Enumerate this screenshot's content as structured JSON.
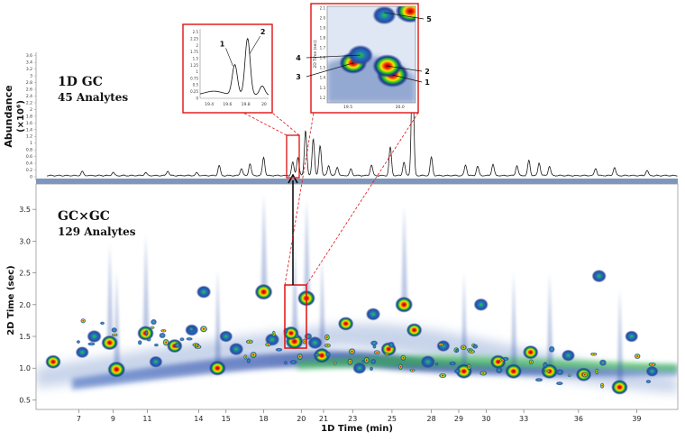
{
  "chart_data": [
    {
      "type": "line",
      "panel": "1D GC",
      "title": "1D GC",
      "subtitle": "45 Analytes",
      "ylabel": "Abundance",
      "yunit": "(×10⁶)",
      "yticks": [
        "0",
        "0.2",
        "0.4",
        "0.6",
        "0.8",
        "1",
        "1.2",
        "1.4",
        "1.6",
        "1.8",
        "2",
        "2.2",
        "2.4",
        "2.6",
        "2.8",
        "3",
        "3.2",
        "3.4",
        "3.6"
      ],
      "xlim": [
        4.5,
        42
      ],
      "ylim": [
        0,
        3.7
      ],
      "peaks": [
        {
          "x": 7.2,
          "y": 0.12
        },
        {
          "x": 9.0,
          "y": 0.1
        },
        {
          "x": 10.9,
          "y": 0.09
        },
        {
          "x": 12.2,
          "y": 0.14
        },
        {
          "x": 13.9,
          "y": 0.08
        },
        {
          "x": 15.2,
          "y": 0.3
        },
        {
          "x": 16.5,
          "y": 0.22
        },
        {
          "x": 17.0,
          "y": 0.36
        },
        {
          "x": 17.8,
          "y": 0.55
        },
        {
          "x": 19.5,
          "y": 0.4
        },
        {
          "x": 19.8,
          "y": 0.55
        },
        {
          "x": 20.25,
          "y": 1.35
        },
        {
          "x": 20.7,
          "y": 1.1
        },
        {
          "x": 21.1,
          "y": 0.9
        },
        {
          "x": 21.6,
          "y": 0.3
        },
        {
          "x": 22.1,
          "y": 0.26
        },
        {
          "x": 22.9,
          "y": 0.2
        },
        {
          "x": 24.1,
          "y": 0.32
        },
        {
          "x": 25.2,
          "y": 0.85
        },
        {
          "x": 26.0,
          "y": 0.4
        },
        {
          "x": 26.5,
          "y": 3.35
        },
        {
          "x": 27.6,
          "y": 0.55
        },
        {
          "x": 29.6,
          "y": 0.32
        },
        {
          "x": 30.3,
          "y": 0.28
        },
        {
          "x": 31.2,
          "y": 0.34
        },
        {
          "x": 32.6,
          "y": 0.3
        },
        {
          "x": 33.3,
          "y": 0.45
        },
        {
          "x": 33.9,
          "y": 0.38
        },
        {
          "x": 34.5,
          "y": 0.28
        },
        {
          "x": 37.2,
          "y": 0.22
        },
        {
          "x": 38.3,
          "y": 0.24
        },
        {
          "x": 40.2,
          "y": 0.16
        }
      ]
    },
    {
      "type": "heatmap",
      "panel": "GC×GC",
      "title": "GC×GC",
      "subtitle": "129 Analytes",
      "xlabel": "1D Time (min)",
      "ylabel": "2D Time (sec)",
      "xlim": [
        4.5,
        42
      ],
      "ylim": [
        0.35,
        3.9
      ],
      "xticks": [
        "7",
        "9",
        "11",
        "14",
        "15",
        "18",
        "20",
        "21",
        "23",
        "25",
        "28",
        "29",
        "30",
        "33",
        "36",
        "39"
      ],
      "yticks": [
        "0.5",
        "1.0",
        "1.5",
        "2.0",
        "2.5",
        "3.0",
        "3.5"
      ],
      "spots": [
        {
          "x": 5.5,
          "y": 1.1,
          "v": 0.8
        },
        {
          "x": 7.2,
          "y": 1.25,
          "v": 0.6
        },
        {
          "x": 7.9,
          "y": 1.5,
          "v": 0.7
        },
        {
          "x": 8.8,
          "y": 1.4,
          "v": 0.9
        },
        {
          "x": 9.2,
          "y": 0.98,
          "v": 1.0
        },
        {
          "x": 10.9,
          "y": 1.55,
          "v": 0.9
        },
        {
          "x": 11.5,
          "y": 1.1,
          "v": 0.6
        },
        {
          "x": 12.6,
          "y": 1.35,
          "v": 0.8
        },
        {
          "x": 13.6,
          "y": 1.6,
          "v": 0.6
        },
        {
          "x": 14.3,
          "y": 2.2,
          "v": 0.7
        },
        {
          "x": 15.1,
          "y": 1.0,
          "v": 0.9
        },
        {
          "x": 15.6,
          "y": 1.5,
          "v": 0.6
        },
        {
          "x": 16.2,
          "y": 1.3,
          "v": 0.7
        },
        {
          "x": 17.8,
          "y": 2.2,
          "v": 1.0
        },
        {
          "x": 18.3,
          "y": 1.45,
          "v": 0.7
        },
        {
          "x": 19.6,
          "y": 1.42,
          "v": 1.0
        },
        {
          "x": 19.4,
          "y": 1.55,
          "v": 0.8
        },
        {
          "x": 20.3,
          "y": 2.1,
          "v": 1.0
        },
        {
          "x": 20.8,
          "y": 1.4,
          "v": 0.7
        },
        {
          "x": 21.2,
          "y": 1.2,
          "v": 0.9
        },
        {
          "x": 22.6,
          "y": 1.7,
          "v": 0.8
        },
        {
          "x": 23.4,
          "y": 1.0,
          "v": 0.6
        },
        {
          "x": 24.2,
          "y": 1.85,
          "v": 0.7
        },
        {
          "x": 25.1,
          "y": 1.3,
          "v": 0.8
        },
        {
          "x": 26.0,
          "y": 2.0,
          "v": 1.0
        },
        {
          "x": 26.6,
          "y": 1.6,
          "v": 0.8
        },
        {
          "x": 27.4,
          "y": 1.1,
          "v": 0.7
        },
        {
          "x": 28.3,
          "y": 1.35,
          "v": 0.6
        },
        {
          "x": 29.5,
          "y": 0.95,
          "v": 0.9
        },
        {
          "x": 30.5,
          "y": 2.0,
          "v": 0.7
        },
        {
          "x": 31.5,
          "y": 1.1,
          "v": 0.8
        },
        {
          "x": 32.4,
          "y": 0.95,
          "v": 0.9
        },
        {
          "x": 33.4,
          "y": 1.25,
          "v": 0.8
        },
        {
          "x": 34.5,
          "y": 0.95,
          "v": 0.9
        },
        {
          "x": 35.6,
          "y": 1.2,
          "v": 0.6
        },
        {
          "x": 36.5,
          "y": 0.9,
          "v": 0.8
        },
        {
          "x": 37.4,
          "y": 2.45,
          "v": 0.7
        },
        {
          "x": 38.6,
          "y": 0.7,
          "v": 0.9
        },
        {
          "x": 39.3,
          "y": 1.5,
          "v": 0.6
        },
        {
          "x": 40.5,
          "y": 0.95,
          "v": 0.5
        }
      ]
    },
    {
      "type": "line",
      "panel": "1D zoom inset",
      "xticks": [
        "19.4",
        "19.6",
        "19.8",
        "20"
      ],
      "yticks": [
        "0",
        "0.25",
        "0.5",
        "0.75",
        "1",
        "1.25",
        "1.5",
        "1.75",
        "2",
        "2.25",
        "2.5"
      ],
      "xlim": [
        19.3,
        20.05
      ],
      "ylim": [
        0,
        2.6
      ],
      "peak_labels": [
        "1",
        "2"
      ],
      "peaks": [
        {
          "x": 19.68,
          "y": 1.15
        },
        {
          "x": 19.82,
          "y": 2.15
        },
        {
          "x": 19.98,
          "y": 0.35
        }
      ]
    },
    {
      "type": "heatmap",
      "panel": "GC×GC zoom inset",
      "ylabel": "2D Time (sec)",
      "xticks": [
        "19.5",
        "20.0"
      ],
      "yticks": [
        "1.2",
        "1.3",
        "1.4",
        "1.5",
        "1.6",
        "1.7",
        "1.8",
        "1.9",
        "2.0",
        "2.1"
      ],
      "xlim": [
        19.3,
        20.15
      ],
      "ylim": [
        1.15,
        2.12
      ],
      "spot_labels": [
        "1",
        "2",
        "3",
        "4",
        "5"
      ],
      "spots": [
        {
          "x": 19.93,
          "y": 1.43,
          "v": 1.0
        },
        {
          "x": 19.88,
          "y": 1.52,
          "v": 0.9
        },
        {
          "x": 19.55,
          "y": 1.55,
          "v": 0.8
        },
        {
          "x": 19.62,
          "y": 1.63,
          "v": 0.7
        },
        {
          "x": 19.85,
          "y": 2.03,
          "v": 0.6
        },
        {
          "x": 20.1,
          "y": 2.07,
          "v": 0.9
        }
      ]
    }
  ]
}
